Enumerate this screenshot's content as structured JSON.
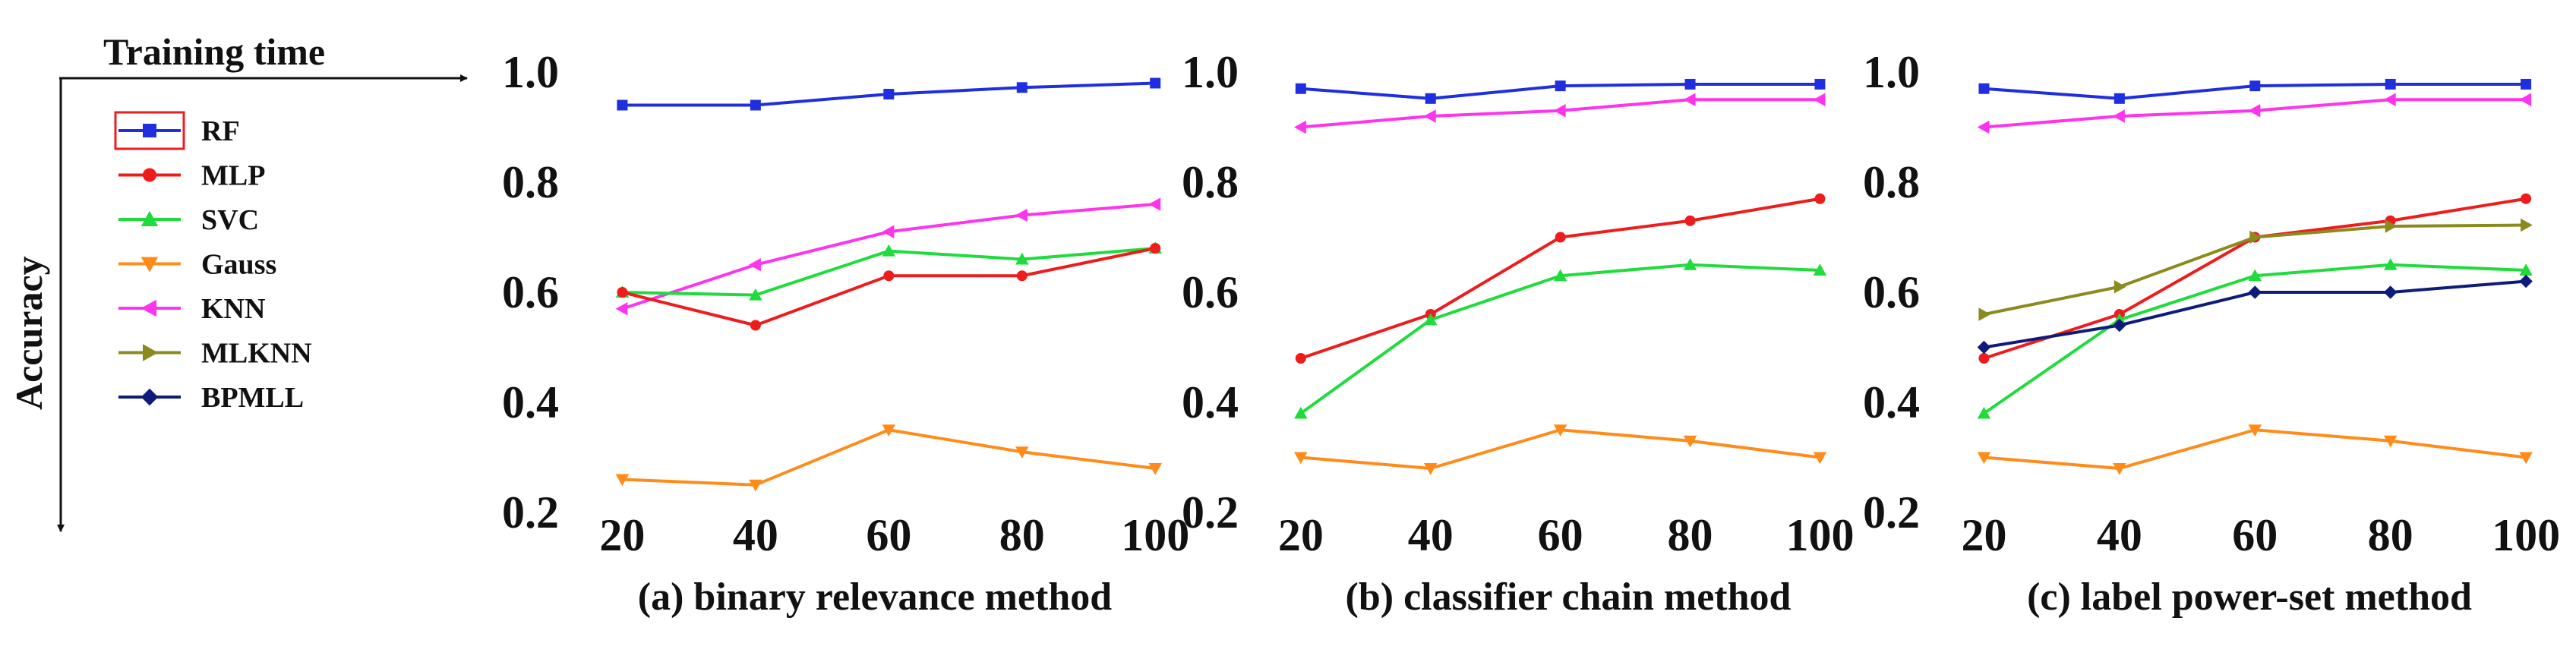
{
  "key": {
    "x_title": "Training time",
    "y_title": "Accuracy"
  },
  "legend": {
    "entries": [
      {
        "label": "RF",
        "color": "#1f2fe0",
        "marker": "square"
      },
      {
        "label": "MLP",
        "color": "#ee1c1c",
        "marker": "circle"
      },
      {
        "label": "SVC",
        "color": "#1fdc3c",
        "marker": "triangle-up"
      },
      {
        "label": "Gauss",
        "color": "#ff8c1a",
        "marker": "triangle-down"
      },
      {
        "label": "KNN",
        "color": "#ff33ee",
        "marker": "triangle-left"
      },
      {
        "label": "MLKNN",
        "color": "#8a8a1e",
        "marker": "triangle-right"
      },
      {
        "label": "BPMLL",
        "color": "#0e1b7a",
        "marker": "diamond"
      }
    ]
  },
  "chart_data": [
    {
      "type": "line",
      "title": "(a) binary relevance method",
      "x": [
        20,
        40,
        60,
        80,
        100
      ],
      "xlim": [
        13,
        101
      ],
      "ylim": [
        0.2,
        1.0
      ],
      "yticks": [
        "0.2",
        "0.4",
        "0.6",
        "0.8",
        "1.0"
      ],
      "series": [
        {
          "name": "RF",
          "values": [
            0.94,
            0.94,
            0.96,
            0.972,
            0.98
          ]
        },
        {
          "name": "KNN",
          "values": [
            0.57,
            0.65,
            0.71,
            0.74,
            0.76
          ]
        },
        {
          "name": "SVC",
          "values": [
            0.6,
            0.595,
            0.675,
            0.66,
            0.68
          ]
        },
        {
          "name": "MLP",
          "values": [
            0.6,
            0.54,
            0.63,
            0.63,
            0.68
          ]
        },
        {
          "name": "Gauss",
          "values": [
            0.26,
            0.25,
            0.35,
            0.31,
            0.28
          ]
        }
      ]
    },
    {
      "type": "line",
      "title": "(b)  classifier chain method",
      "x": [
        20,
        40,
        60,
        80,
        100
      ],
      "xlim": [
        13,
        101
      ],
      "ylim": [
        0.2,
        1.0
      ],
      "yticks": [
        "0.2",
        "0.4",
        "0.6",
        "0.8",
        "1.0"
      ],
      "series": [
        {
          "name": "RF",
          "values": [
            0.97,
            0.952,
            0.975,
            0.978,
            0.978
          ]
        },
        {
          "name": "KNN",
          "values": [
            0.9,
            0.92,
            0.93,
            0.95,
            0.95
          ]
        },
        {
          "name": "MLP",
          "values": [
            0.48,
            0.56,
            0.7,
            0.73,
            0.77
          ]
        },
        {
          "name": "SVC",
          "values": [
            0.38,
            0.55,
            0.63,
            0.65,
            0.64
          ]
        },
        {
          "name": "Gauss",
          "values": [
            0.3,
            0.28,
            0.35,
            0.33,
            0.3
          ]
        }
      ]
    },
    {
      "type": "line",
      "title": "(c) label power-set method",
      "x": [
        20,
        40,
        60,
        80,
        100
      ],
      "xlim": [
        13,
        101
      ],
      "ylim": [
        0.2,
        1.0
      ],
      "yticks": [
        "0.2",
        "0.4",
        "0.6",
        "0.8",
        "1.0"
      ],
      "series": [
        {
          "name": "RF",
          "values": [
            0.97,
            0.952,
            0.975,
            0.978,
            0.978
          ]
        },
        {
          "name": "KNN",
          "values": [
            0.9,
            0.92,
            0.93,
            0.95,
            0.95
          ]
        },
        {
          "name": "MLP",
          "values": [
            0.48,
            0.56,
            0.7,
            0.73,
            0.77
          ]
        },
        {
          "name": "MLKNN",
          "values": [
            0.56,
            0.61,
            0.7,
            0.72,
            0.722
          ]
        },
        {
          "name": "SVC",
          "values": [
            0.38,
            0.55,
            0.63,
            0.65,
            0.64
          ]
        },
        {
          "name": "BPMLL",
          "values": [
            0.5,
            0.54,
            0.6,
            0.6,
            0.62
          ]
        },
        {
          "name": "Gauss",
          "values": [
            0.3,
            0.28,
            0.35,
            0.33,
            0.3
          ]
        }
      ]
    }
  ]
}
